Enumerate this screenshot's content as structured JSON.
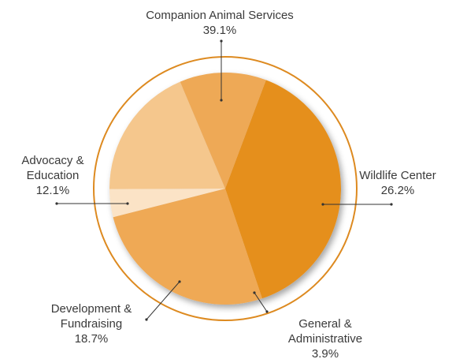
{
  "chart_data": {
    "type": "pie",
    "title": "",
    "slices": [
      {
        "label": [
          "Companion Animal Services"
        ],
        "value": 39.1,
        "value_text": "39.1%",
        "color": "#e58f1d"
      },
      {
        "label": [
          "Wildlife Center"
        ],
        "value": 26.2,
        "value_text": "26.2%",
        "color": "#efa955"
      },
      {
        "label": [
          "General &",
          "Administrative"
        ],
        "value": 3.9,
        "value_text": "3.9%",
        "color": "#fbe3c6"
      },
      {
        "label": [
          "Development &",
          "Fundraising"
        ],
        "value": 18.7,
        "value_text": "18.7%",
        "color": "#f5c78d"
      },
      {
        "label": [
          "Advocacy &",
          "Education"
        ],
        "value": 12.1,
        "value_text": "12.1%",
        "color": "#eea957"
      }
    ],
    "ring_color": "#dd8a20",
    "legend": "none"
  }
}
